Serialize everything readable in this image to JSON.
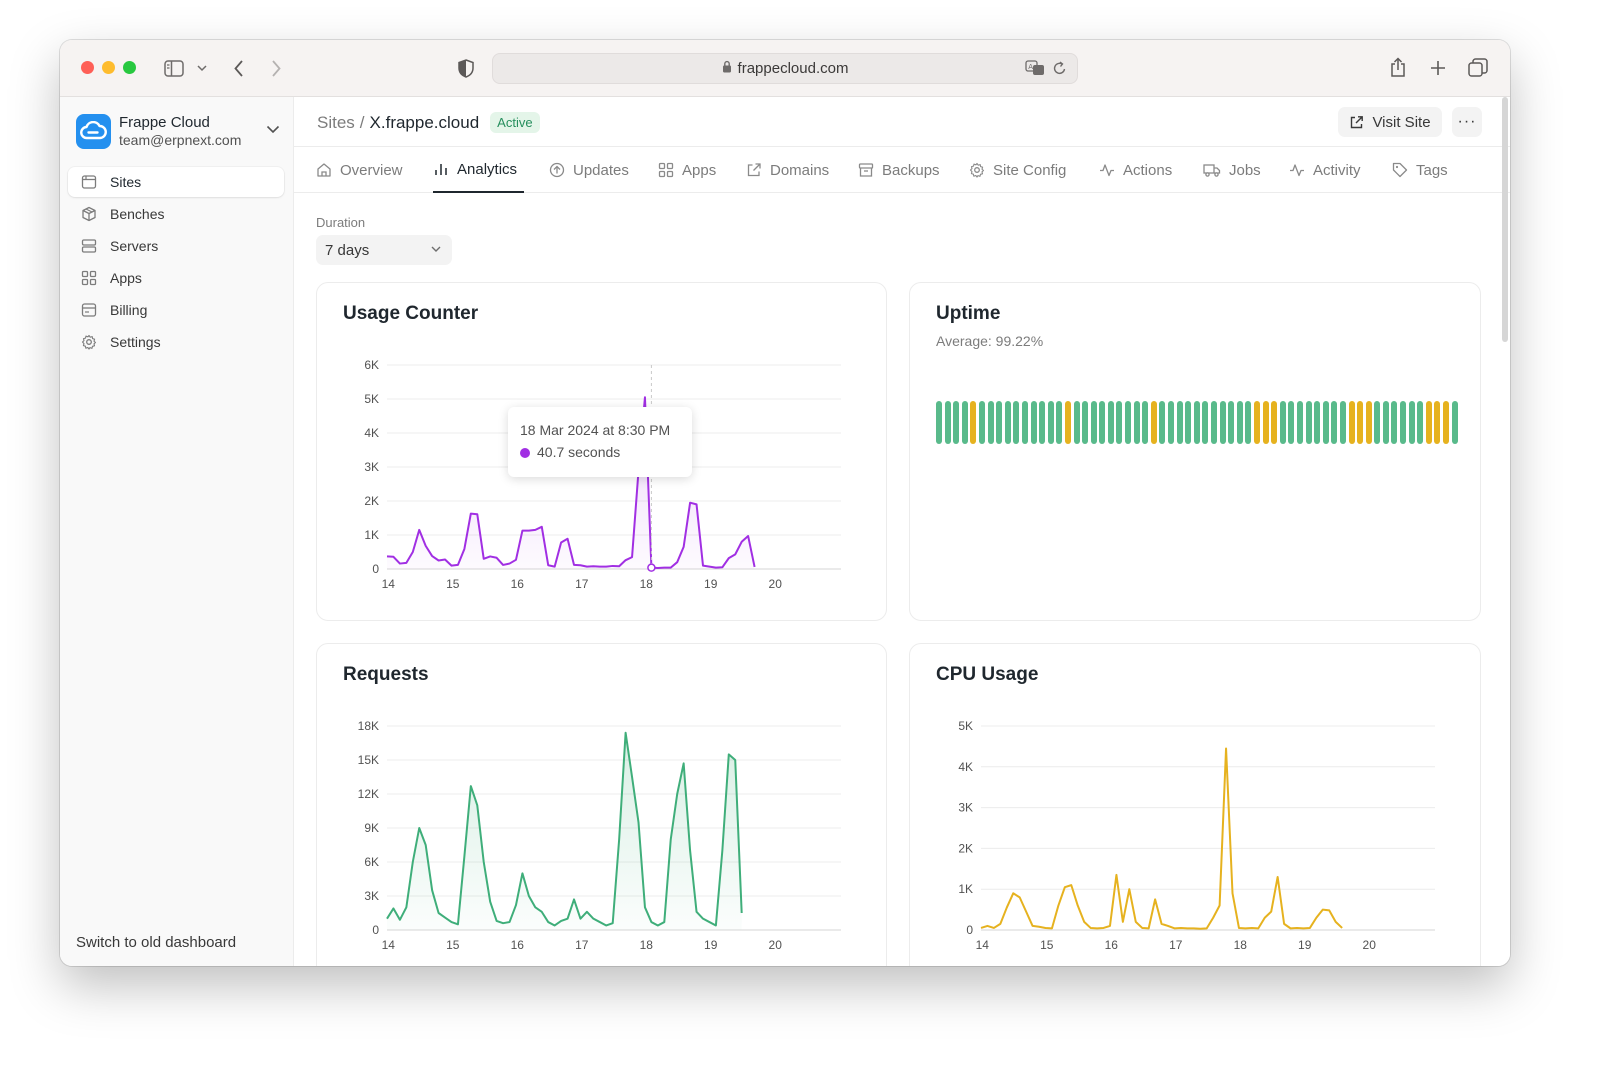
{
  "browser": {
    "url": "frappecloud.com"
  },
  "sidebar": {
    "team_name": "Frappe Cloud",
    "team_email": "team@erpnext.com",
    "items": [
      {
        "label": "Sites",
        "icon": "browser-icon",
        "active": true
      },
      {
        "label": "Benches",
        "icon": "package-icon",
        "active": false
      },
      {
        "label": "Servers",
        "icon": "server-icon",
        "active": false
      },
      {
        "label": "Apps",
        "icon": "grid-icon",
        "active": false
      },
      {
        "label": "Billing",
        "icon": "billing-icon",
        "active": false
      },
      {
        "label": "Settings",
        "icon": "gear-icon",
        "active": false
      }
    ],
    "switch_old": "Switch to old dashboard"
  },
  "header": {
    "breadcrumb_root": "Sites",
    "breadcrumb_sep": "/",
    "site_name": "X.frappe.cloud",
    "status": "Active",
    "visit_label": "Visit Site",
    "more_label": "···"
  },
  "tabs": [
    {
      "label": "Overview",
      "icon": "home-icon"
    },
    {
      "label": "Analytics",
      "icon": "bar-chart-icon",
      "active": true
    },
    {
      "label": "Updates",
      "icon": "arrow-up-circle-icon"
    },
    {
      "label": "Apps",
      "icon": "grid-icon"
    },
    {
      "label": "Domains",
      "icon": "external-link-icon"
    },
    {
      "label": "Backups",
      "icon": "archive-icon"
    },
    {
      "label": "Site Config",
      "icon": "gear-icon"
    },
    {
      "label": "Actions",
      "icon": "activity-icon"
    },
    {
      "label": "Jobs",
      "icon": "truck-icon"
    },
    {
      "label": "Activity",
      "icon": "activity-icon"
    },
    {
      "label": "Tags",
      "icon": "tag-icon"
    }
  ],
  "filters": {
    "duration_label": "Duration",
    "duration_value": "7 days"
  },
  "colors": {
    "usage": "#a12fe3",
    "requests": "#3fae7a",
    "cpu": "#e6b21f",
    "uptime_up": "#59ba8b",
    "uptime_partial": "#e6b21f"
  },
  "uptime": {
    "title": "Uptime",
    "average": "Average: 99.22%",
    "bars": [
      1,
      1,
      1,
      1,
      0,
      1,
      1,
      1,
      1,
      1,
      1,
      1,
      1,
      1,
      1,
      0,
      1,
      1,
      1,
      1,
      1,
      1,
      1,
      1,
      1,
      0,
      1,
      1,
      1,
      1,
      1,
      1,
      1,
      1,
      1,
      1,
      1,
      0,
      0,
      0,
      1,
      1,
      1,
      1,
      1,
      1,
      1,
      1,
      0,
      0,
      0,
      1,
      1,
      1,
      1,
      1,
      1,
      0,
      0,
      0,
      1
    ]
  },
  "chart_data": [
    {
      "type": "area",
      "title": "Usage Counter",
      "ylim": [
        0,
        6000
      ],
      "y_ticks": [
        "0",
        "1K",
        "2K",
        "3K",
        "4K",
        "5K",
        "6K"
      ],
      "x_ticks": [
        "14",
        "15",
        "16",
        "17",
        "18",
        "19",
        "20"
      ],
      "x_range": [
        13.98,
        21.02
      ],
      "series": [
        {
          "values": [
            [
              13.98,
              370
            ],
            [
              14.08,
              360
            ],
            [
              14.18,
              160
            ],
            [
              14.28,
              180
            ],
            [
              14.38,
              500
            ],
            [
              14.48,
              1150
            ],
            [
              14.58,
              680
            ],
            [
              14.68,
              380
            ],
            [
              14.78,
              250
            ],
            [
              14.88,
              280
            ],
            [
              14.98,
              100
            ],
            [
              15.08,
              120
            ],
            [
              15.18,
              590
            ],
            [
              15.28,
              1630
            ],
            [
              15.38,
              1610
            ],
            [
              15.48,
              300
            ],
            [
              15.58,
              370
            ],
            [
              15.68,
              330
            ],
            [
              15.78,
              120
            ],
            [
              15.88,
              160
            ],
            [
              15.98,
              270
            ],
            [
              16.08,
              1130
            ],
            [
              16.18,
              1130
            ],
            [
              16.28,
              1150
            ],
            [
              16.38,
              1240
            ],
            [
              16.48,
              110
            ],
            [
              16.58,
              70
            ],
            [
              16.68,
              780
            ],
            [
              16.78,
              890
            ],
            [
              16.88,
              120
            ],
            [
              16.98,
              110
            ],
            [
              17.08,
              70
            ],
            [
              17.18,
              80
            ],
            [
              17.28,
              70
            ],
            [
              17.38,
              70
            ],
            [
              17.48,
              90
            ],
            [
              17.58,
              80
            ],
            [
              17.68,
              260
            ],
            [
              17.78,
              350
            ],
            [
              17.88,
              2890
            ],
            [
              17.98,
              5050
            ],
            [
              18.08,
              40
            ],
            [
              18.18,
              30
            ],
            [
              18.28,
              40
            ],
            [
              18.38,
              40
            ],
            [
              18.48,
              200
            ],
            [
              18.58,
              650
            ],
            [
              18.68,
              1950
            ],
            [
              18.78,
              1900
            ],
            [
              18.88,
              100
            ],
            [
              18.98,
              70
            ],
            [
              19.08,
              40
            ],
            [
              19.18,
              50
            ],
            [
              19.28,
              320
            ],
            [
              19.38,
              430
            ],
            [
              19.48,
              800
            ],
            [
              19.58,
              970
            ],
            [
              19.68,
              60
            ]
          ]
        }
      ],
      "tooltip": {
        "label": "18 Mar 2024 at 8:30 PM",
        "value": "40.7 seconds",
        "x": 18.08
      }
    },
    {
      "type": "area",
      "title": "Requests",
      "ylim": [
        0,
        18000
      ],
      "y_ticks": [
        "0",
        "3K",
        "6K",
        "9K",
        "12K",
        "15K",
        "18K"
      ],
      "x_ticks": [
        "14",
        "15",
        "16",
        "17",
        "18",
        "19",
        "20"
      ],
      "x_range": [
        13.98,
        21.02
      ],
      "series": [
        {
          "values": [
            [
              13.98,
              1000
            ],
            [
              14.08,
              1900
            ],
            [
              14.18,
              900
            ],
            [
              14.28,
              2000
            ],
            [
              14.38,
              6000
            ],
            [
              14.48,
              9000
            ],
            [
              14.58,
              7500
            ],
            [
              14.68,
              3500
            ],
            [
              14.78,
              1500
            ],
            [
              14.88,
              1100
            ],
            [
              14.98,
              700
            ],
            [
              15.08,
              500
            ],
            [
              15.18,
              6500
            ],
            [
              15.28,
              12700
            ],
            [
              15.38,
              11000
            ],
            [
              15.48,
              6000
            ],
            [
              15.58,
              2500
            ],
            [
              15.68,
              800
            ],
            [
              15.78,
              600
            ],
            [
              15.88,
              700
            ],
            [
              15.98,
              2200
            ],
            [
              16.08,
              5000
            ],
            [
              16.18,
              3000
            ],
            [
              16.28,
              2000
            ],
            [
              16.38,
              1600
            ],
            [
              16.48,
              700
            ],
            [
              16.58,
              400
            ],
            [
              16.68,
              800
            ],
            [
              16.78,
              1000
            ],
            [
              16.88,
              2700
            ],
            [
              16.98,
              1000
            ],
            [
              17.08,
              1600
            ],
            [
              17.18,
              1000
            ],
            [
              17.28,
              700
            ],
            [
              17.38,
              400
            ],
            [
              17.48,
              600
            ],
            [
              17.58,
              8000
            ],
            [
              17.68,
              17400
            ],
            [
              17.78,
              13500
            ],
            [
              17.88,
              9500
            ],
            [
              17.98,
              2000
            ],
            [
              18.08,
              700
            ],
            [
              18.18,
              400
            ],
            [
              18.28,
              700
            ],
            [
              18.38,
              8000
            ],
            [
              18.48,
              12000
            ],
            [
              18.58,
              14700
            ],
            [
              18.68,
              7000
            ],
            [
              18.78,
              1600
            ],
            [
              18.88,
              1000
            ],
            [
              18.98,
              700
            ],
            [
              19.08,
              400
            ],
            [
              19.18,
              7000
            ],
            [
              19.28,
              15500
            ],
            [
              19.38,
              15000
            ],
            [
              19.48,
              1500
            ]
          ]
        }
      ]
    },
    {
      "type": "line",
      "title": "CPU Usage",
      "ylim": [
        0,
        5000
      ],
      "y_ticks": [
        "0",
        "1K",
        "2K",
        "3K",
        "4K",
        "5K"
      ],
      "x_ticks": [
        "14",
        "15",
        "16",
        "17",
        "18",
        "19",
        "20"
      ],
      "x_range": [
        13.98,
        21.02
      ],
      "series": [
        {
          "values": [
            [
              13.98,
              50
            ],
            [
              14.08,
              100
            ],
            [
              14.18,
              50
            ],
            [
              14.28,
              150
            ],
            [
              14.38,
              550
            ],
            [
              14.48,
              900
            ],
            [
              14.58,
              800
            ],
            [
              14.68,
              450
            ],
            [
              14.78,
              100
            ],
            [
              14.88,
              80
            ],
            [
              14.98,
              50
            ],
            [
              15.08,
              40
            ],
            [
              15.18,
              600
            ],
            [
              15.28,
              1050
            ],
            [
              15.38,
              1100
            ],
            [
              15.48,
              600
            ],
            [
              15.58,
              200
            ],
            [
              15.68,
              50
            ],
            [
              15.78,
              40
            ],
            [
              15.88,
              50
            ],
            [
              15.98,
              100
            ],
            [
              16.08,
              1350
            ],
            [
              16.18,
              200
            ],
            [
              16.28,
              1000
            ],
            [
              16.38,
              200
            ],
            [
              16.48,
              50
            ],
            [
              16.58,
              40
            ],
            [
              16.68,
              750
            ],
            [
              16.78,
              150
            ],
            [
              16.88,
              100
            ],
            [
              16.98,
              40
            ],
            [
              17.08,
              50
            ],
            [
              17.18,
              40
            ],
            [
              17.28,
              40
            ],
            [
              17.38,
              30
            ],
            [
              17.48,
              40
            ],
            [
              17.58,
              300
            ],
            [
              17.68,
              600
            ],
            [
              17.78,
              4450
            ],
            [
              17.88,
              900
            ],
            [
              17.98,
              50
            ],
            [
              18.08,
              40
            ],
            [
              18.18,
              50
            ],
            [
              18.28,
              40
            ],
            [
              18.38,
              300
            ],
            [
              18.48,
              450
            ],
            [
              18.58,
              1300
            ],
            [
              18.68,
              150
            ],
            [
              18.78,
              40
            ],
            [
              18.88,
              50
            ],
            [
              18.98,
              40
            ],
            [
              19.08,
              50
            ],
            [
              19.18,
              300
            ],
            [
              19.28,
              500
            ],
            [
              19.38,
              480
            ],
            [
              19.48,
              200
            ],
            [
              19.58,
              50
            ]
          ]
        }
      ]
    }
  ]
}
